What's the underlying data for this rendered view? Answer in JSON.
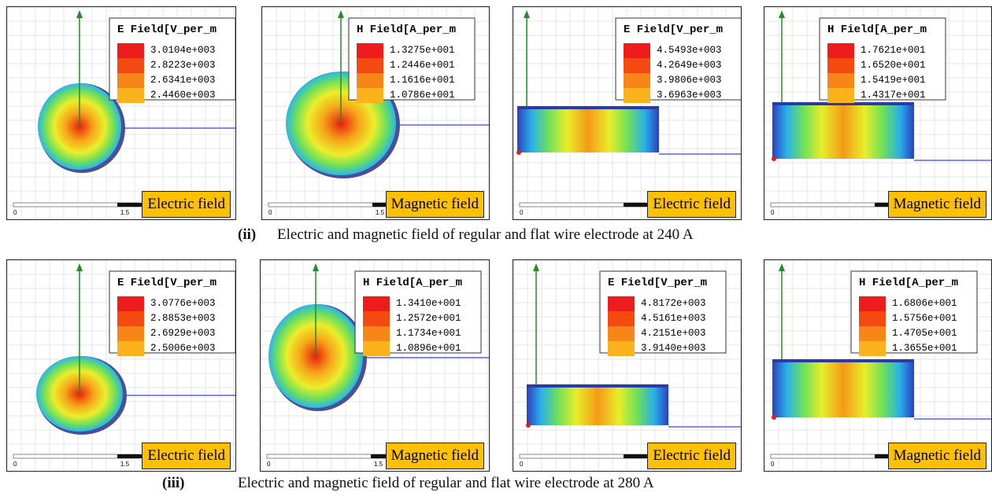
{
  "panels": [
    {
      "legend_title": "E Field[V_per_m",
      "legend_values": [
        "3.0104e+003",
        "2.8223e+003",
        "2.6341e+003",
        "2.4460e+003"
      ],
      "label": "Electric field",
      "scale": [
        "0",
        "1.5"
      ]
    },
    {
      "legend_title": "H Field[A_per_m",
      "legend_values": [
        "1.3275e+001",
        "1.2446e+001",
        "1.1616e+001",
        "1.0786e+001"
      ],
      "label": "Magnetic field",
      "scale": [
        "0",
        "1.5"
      ]
    },
    {
      "legend_title": "E Field[V_per_m",
      "legend_values": [
        "4.5493e+003",
        "4.2649e+003",
        "3.9806e+003",
        "3.6963e+003"
      ],
      "label": "Electric field",
      "scale": [
        "0"
      ]
    },
    {
      "legend_title": "H Field[A_per_m",
      "legend_values": [
        "1.7621e+001",
        "1.6520e+001",
        "1.5419e+001",
        "1.4317e+001"
      ],
      "label": "Magnetic field",
      "scale": [
        "0"
      ]
    },
    {
      "legend_title": "E Field[V_per_m",
      "legend_values": [
        "3.0776e+003",
        "2.8853e+003",
        "2.6929e+003",
        "2.5006e+003"
      ],
      "label": "Electric field",
      "scale": [
        "0",
        "1.5"
      ]
    },
    {
      "legend_title": "H Field[A_per_m",
      "legend_values": [
        "1.3410e+001",
        "1.2572e+001",
        "1.1734e+001",
        "1.0896e+001"
      ],
      "label": "Magnetic field",
      "scale": [
        "0",
        "1.5"
      ]
    },
    {
      "legend_title": "E Field[V_per_m",
      "legend_values": [
        "4.8172e+003",
        "4.5161e+003",
        "4.2151e+003",
        "3.9140e+003"
      ],
      "label": "Electric field",
      "scale": [
        "0"
      ]
    },
    {
      "legend_title": "H Field[A_per_m",
      "legend_values": [
        "1.6806e+001",
        "1.5756e+001",
        "1.4705e+001",
        "1.3655e+001"
      ],
      "label": "Magnetic field",
      "scale": [
        "0"
      ]
    }
  ],
  "captions": [
    {
      "number": "(ii)",
      "text": "Electric and magnetic field of regular and flat wire electrode at 240 A"
    },
    {
      "number": "(iii)",
      "text": "Electric and magnetic field of regular and flat wire electrode at 280 A"
    }
  ]
}
